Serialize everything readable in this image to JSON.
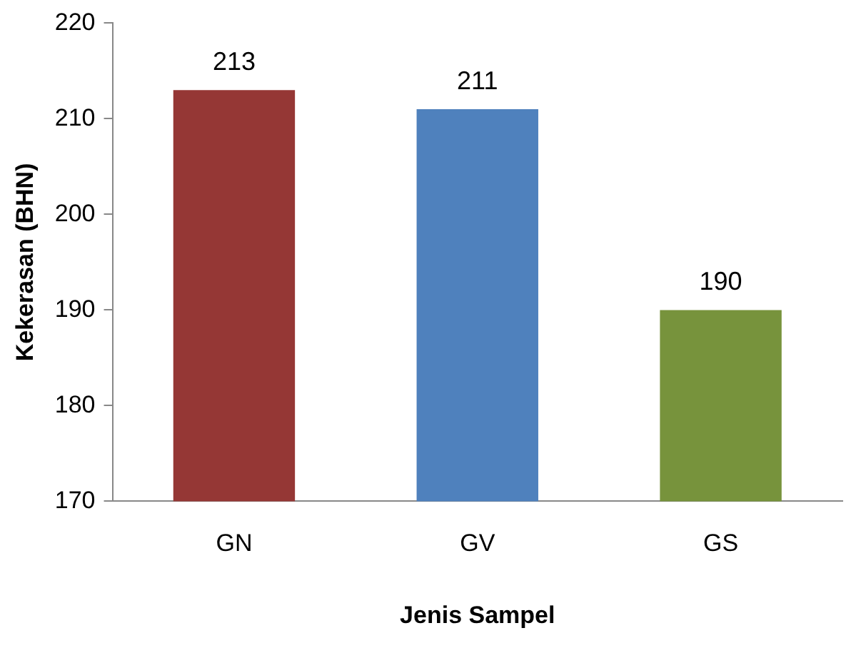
{
  "chart_data": {
    "type": "bar",
    "xlabel": "Jenis Sampel",
    "ylabel": "Kekerasan (BHN)",
    "categories": [
      "GN",
      "GV",
      "GS"
    ],
    "values": [
      213,
      211,
      190
    ],
    "colors": [
      "#953735",
      "#4f81bd",
      "#77933c"
    ],
    "ylim": [
      170,
      220
    ],
    "yticks": [
      170,
      180,
      190,
      200,
      210,
      220
    ],
    "grid": false,
    "data_labels": true
  }
}
